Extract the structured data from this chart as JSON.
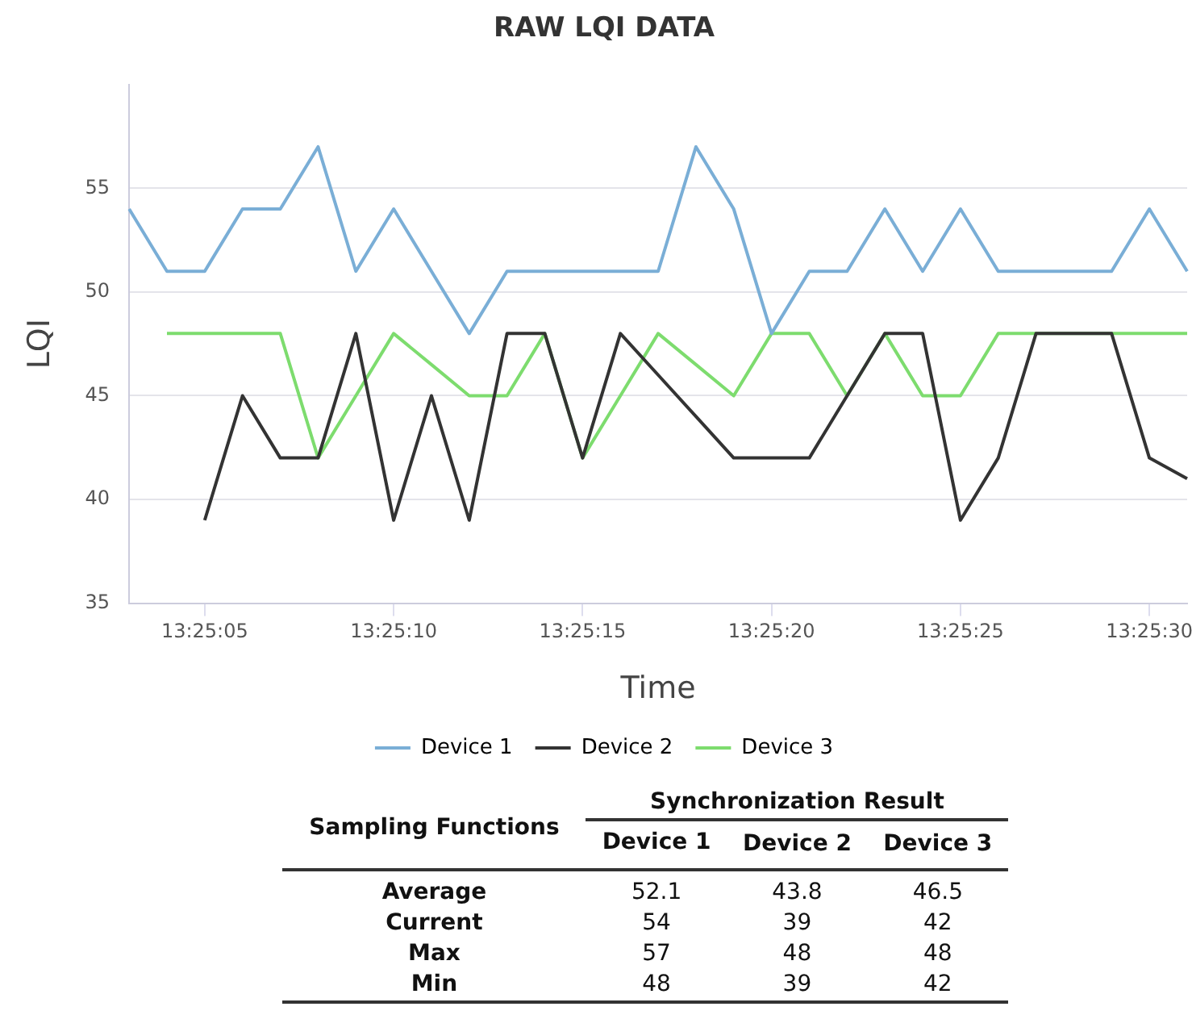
{
  "chart_data": [
    {
      "type": "line",
      "title": "RAW LQI DATA",
      "xlabel": "Time",
      "ylabel": "LQI",
      "categories": [
        null,
        null,
        "13:25:05",
        null,
        null,
        null,
        null,
        "13:25:10",
        null,
        null,
        null,
        null,
        "13:25:15",
        null,
        null,
        null,
        null,
        "13:25:20",
        null,
        null,
        null,
        null,
        "13:25:25",
        null,
        null,
        null,
        null,
        "13:25:30",
        null
      ],
      "series": [
        {
          "name": "Device 1",
          "color": "#7aaed6",
          "values": [
            54,
            51,
            51,
            54,
            54,
            57,
            51,
            54,
            51,
            48,
            51,
            51,
            51,
            51,
            51,
            57,
            54,
            48,
            51,
            51,
            54,
            51,
            54,
            51,
            51,
            51,
            51,
            54,
            51
          ]
        },
        {
          "name": "Device 2",
          "color": "#333333",
          "values": [
            null,
            null,
            39,
            45,
            42,
            42,
            48,
            39,
            45,
            39,
            48,
            48,
            42,
            48,
            46,
            44,
            42,
            42,
            42,
            45,
            48,
            48,
            39,
            42,
            48,
            48,
            48,
            42,
            41
          ]
        },
        {
          "name": "Device 3",
          "color": "#7ddc6e",
          "values": [
            null,
            48,
            48,
            48,
            48,
            42,
            45,
            48,
            46.5,
            45,
            45,
            48,
            42,
            45,
            48,
            46.5,
            45,
            48,
            48,
            45,
            48,
            45,
            45,
            48,
            48,
            48,
            48,
            48,
            48
          ]
        }
      ],
      "ylim": [
        35,
        60
      ],
      "yticks": [
        35,
        40,
        45,
        50,
        55
      ],
      "grid": "y",
      "legend": "bottom",
      "marker": "none",
      "line_style": "solid"
    },
    {
      "type": "other",
      "annotations": [
        "Sampling Functions",
        "Synchronization Result",
        "Device 1",
        "Device 2",
        "Device 3",
        "Average",
        "52.1",
        "43.8",
        "46.5",
        "Current",
        "54",
        "39",
        "42",
        "Max",
        "57",
        "48",
        "48",
        "Min",
        "48",
        "39",
        "42"
      ]
    }
  ]
}
